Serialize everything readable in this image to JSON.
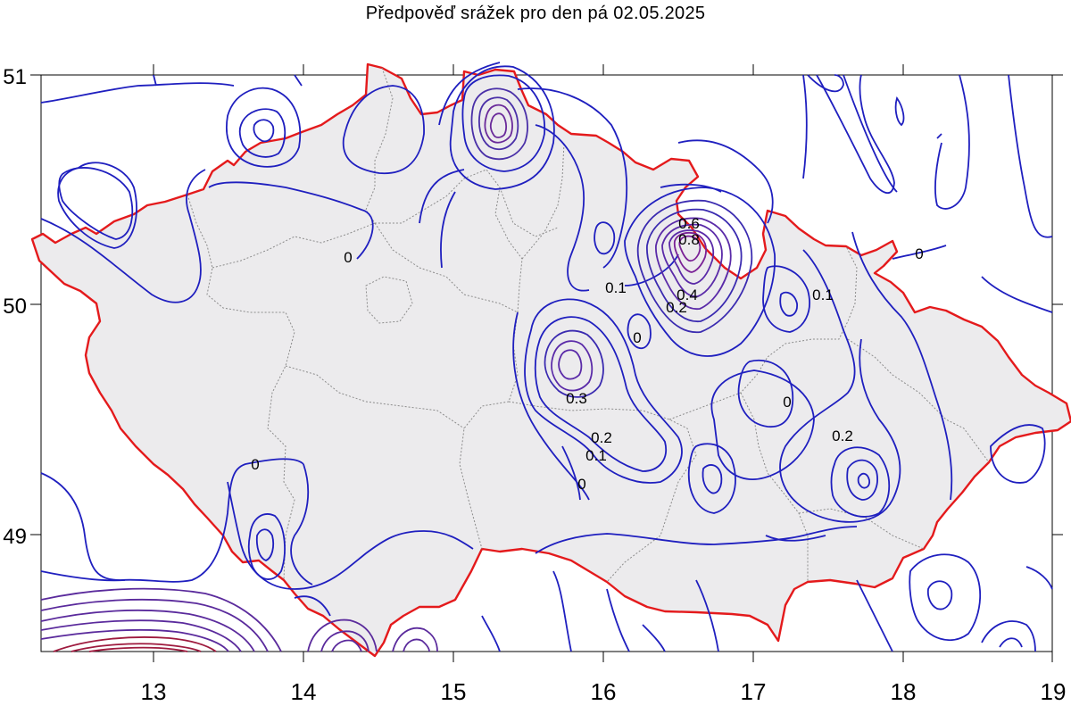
{
  "title": "Předpověď srážek pro den pá 02.05.2025",
  "axes": {
    "x_ticks": [
      "13",
      "14",
      "15",
      "16",
      "17",
      "18",
      "19"
    ],
    "y_ticks": [
      "51",
      "50",
      "49"
    ],
    "x_range": [
      12.25,
      19.0
    ],
    "y_range": [
      48.5,
      51.0
    ]
  },
  "colors": {
    "border": "#e41a1c",
    "land": "#ecebed",
    "contour_low": "#1f1fbf",
    "contour_high": "#8a1c7a",
    "districts": "#8c8c8c"
  },
  "contour_labels": [
    "0",
    "0.1",
    "0.2",
    "0.3",
    "0.4",
    "0.6",
    "0.8"
  ],
  "labels_shown": [
    {
      "text": "0",
      "lon": 14.05,
      "lat": 50.21
    },
    {
      "text": "0.1",
      "lon": 16.1,
      "lat": 50.08
    },
    {
      "text": "0",
      "lon": 16.2,
      "lat": 49.86
    },
    {
      "text": "0.3",
      "lon": 15.85,
      "lat": 49.6
    },
    {
      "text": "0.2",
      "lon": 15.98,
      "lat": 49.42
    },
    {
      "text": "0.1",
      "lon": 15.95,
      "lat": 49.34
    },
    {
      "text": "0",
      "lon": 15.85,
      "lat": 49.22
    },
    {
      "text": "0",
      "lon": 13.7,
      "lat": 49.3
    },
    {
      "text": "0.1",
      "lon": 17.5,
      "lat": 50.0
    },
    {
      "text": "0",
      "lon": 17.25,
      "lat": 49.58
    },
    {
      "text": "0.2",
      "lon": 17.62,
      "lat": 49.43
    },
    {
      "text": "0",
      "lon": 18.1,
      "lat": 50.22
    },
    {
      "text": "0.6",
      "lon": 16.55,
      "lat": 50.35
    },
    {
      "text": "0.8",
      "lon": 16.57,
      "lat": 50.28
    },
    {
      "text": "0.4",
      "lon": 16.58,
      "lat": 50.02
    },
    {
      "text": "0.2",
      "lon": 16.5,
      "lat": 49.95
    }
  ]
}
